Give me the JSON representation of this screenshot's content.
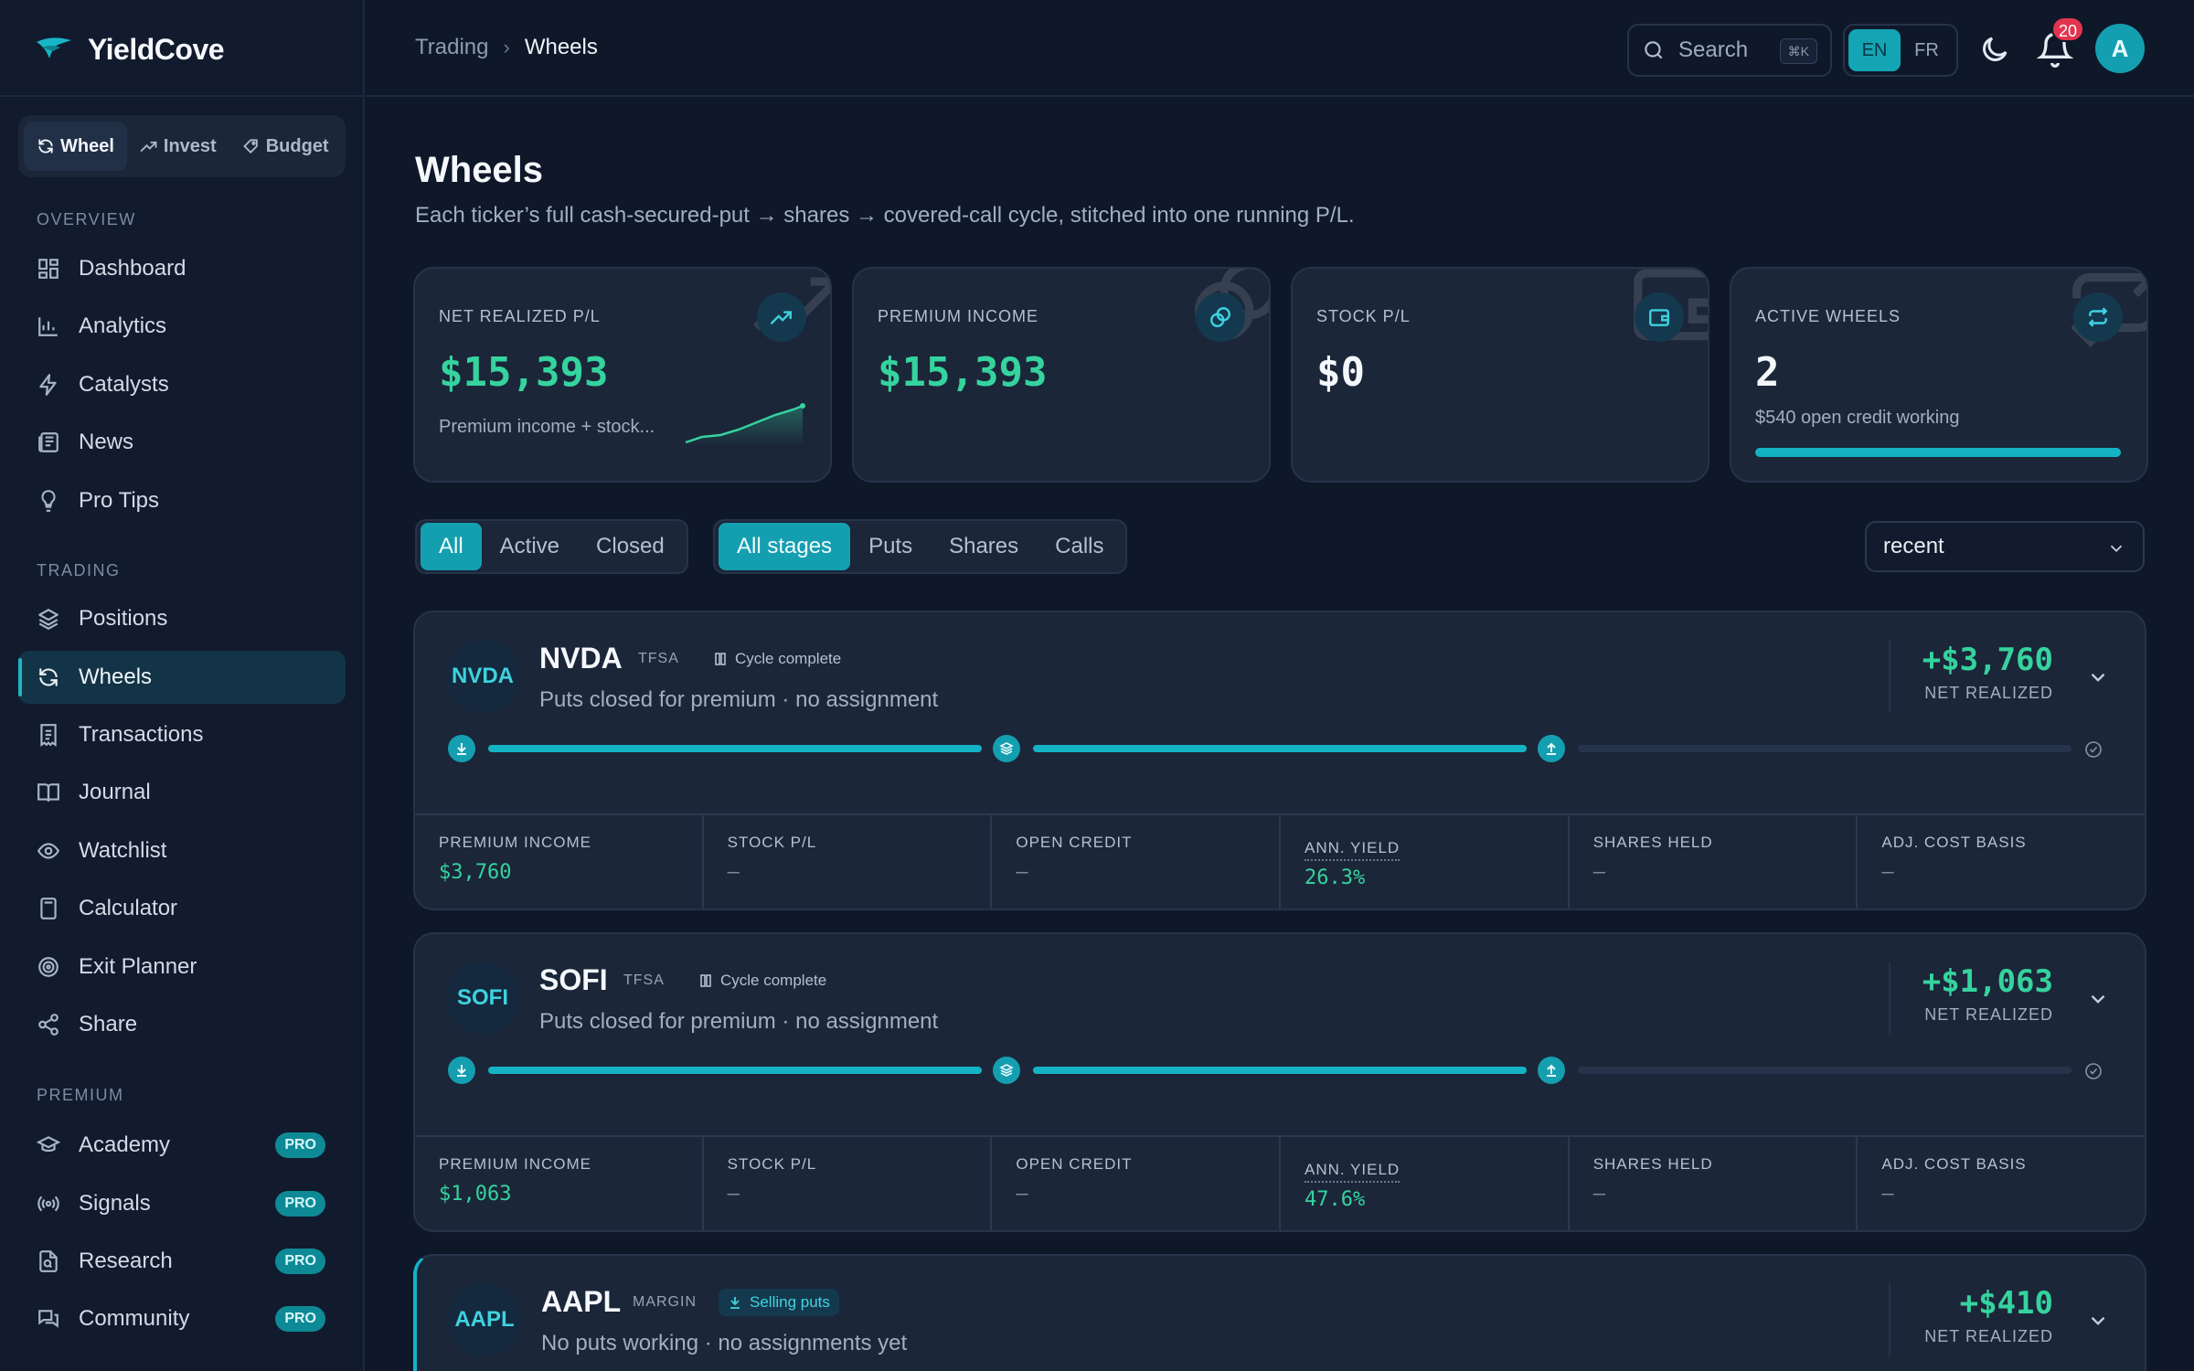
{
  "app": {
    "name": "YieldCove"
  },
  "mode_switch": [
    {
      "label": "Wheel",
      "icon": "refresh-icon",
      "active": true
    },
    {
      "label": "Invest",
      "icon": "trend-up-icon",
      "active": false
    },
    {
      "label": "Budget",
      "icon": "tag-icon",
      "active": false
    }
  ],
  "sidebar": {
    "overview_label": "OVERVIEW",
    "trading_label": "TRADING",
    "premium_label": "PREMIUM",
    "pro_label": "PRO",
    "overview": [
      {
        "label": "Dashboard",
        "icon": "grid-icon"
      },
      {
        "label": "Analytics",
        "icon": "bar-chart-icon"
      },
      {
        "label": "Catalysts",
        "icon": "bolt-icon"
      },
      {
        "label": "News",
        "icon": "newspaper-icon"
      },
      {
        "label": "Pro Tips",
        "icon": "lightbulb-icon"
      }
    ],
    "trading": [
      {
        "label": "Positions",
        "icon": "layers-icon"
      },
      {
        "label": "Wheels",
        "icon": "refresh-icon",
        "active": true
      },
      {
        "label": "Transactions",
        "icon": "receipt-icon"
      },
      {
        "label": "Journal",
        "icon": "book-icon"
      },
      {
        "label": "Watchlist",
        "icon": "eye-icon"
      },
      {
        "label": "Calculator",
        "icon": "calculator-icon"
      },
      {
        "label": "Exit Planner",
        "icon": "target-icon"
      },
      {
        "label": "Share",
        "icon": "share-icon"
      }
    ],
    "premium": [
      {
        "label": "Academy",
        "icon": "graduation-cap-icon"
      },
      {
        "label": "Signals",
        "icon": "broadcast-icon"
      },
      {
        "label": "Research",
        "icon": "file-search-icon"
      },
      {
        "label": "Community",
        "icon": "chat-icon"
      }
    ]
  },
  "header": {
    "breadcrumb": [
      "Trading",
      "Wheels"
    ],
    "search_label": "Search",
    "search_shortcut": "⌘K",
    "languages": [
      "EN",
      "FR"
    ],
    "active_language": "EN",
    "notification_count": "20",
    "avatar_initial": "A"
  },
  "page": {
    "title": "Wheels",
    "subtitle": "Each ticker’s full cash-secured-put → shares → covered-call cycle, stitched into one running P/L."
  },
  "summary_cards": [
    {
      "label": "NET REALIZED P/L",
      "value": "$15,393",
      "sub": "Premium income + stock...",
      "icon": "trend-up-icon",
      "tone": "green"
    },
    {
      "label": "PREMIUM INCOME",
      "value": "$15,393",
      "sub": "",
      "icon": "coins-icon",
      "tone": "green"
    },
    {
      "label": "STOCK P/L",
      "value": "$0",
      "sub": "",
      "icon": "wallet-icon",
      "tone": "white"
    },
    {
      "label": "ACTIVE WHEELS",
      "value": "2",
      "sub": "$540 open credit working",
      "icon": "repeat-icon",
      "tone": "white",
      "progress": 1.0
    }
  ],
  "filters": {
    "status": [
      "All",
      "Active",
      "Closed"
    ],
    "status_active": "All",
    "stages": [
      "All stages",
      "Puts",
      "Shares",
      "Calls"
    ],
    "stages_active": "All stages",
    "sort": "recent"
  },
  "wheels": [
    {
      "ticker": "NVDA",
      "account": "TFSA",
      "tag": "Cycle complete",
      "tag_icon": "columns-icon",
      "description": "Puts closed for premium · no assignment",
      "pl": "+$3,760",
      "pl_label": "NET REALIZED",
      "stages_done": 2,
      "stats": [
        {
          "label": "PREMIUM INCOME",
          "value": "$3,760",
          "tone": "g"
        },
        {
          "label": "STOCK P/L",
          "value": "—",
          "tone": ""
        },
        {
          "label": "OPEN CREDIT",
          "value": "—",
          "tone": ""
        },
        {
          "label": "ANN. YIELD",
          "value": "26.3%",
          "tone": "g"
        },
        {
          "label": "SHARES HELD",
          "value": "—",
          "tone": ""
        },
        {
          "label": "ADJ. COST BASIS",
          "value": "—",
          "tone": ""
        }
      ]
    },
    {
      "ticker": "SOFI",
      "account": "TFSA",
      "tag": "Cycle complete",
      "tag_icon": "columns-icon",
      "description": "Puts closed for premium · no assignment",
      "pl": "+$1,063",
      "pl_label": "NET REALIZED",
      "stages_done": 2,
      "stats": [
        {
          "label": "PREMIUM INCOME",
          "value": "$1,063",
          "tone": "g"
        },
        {
          "label": "STOCK P/L",
          "value": "—",
          "tone": ""
        },
        {
          "label": "OPEN CREDIT",
          "value": "—",
          "tone": ""
        },
        {
          "label": "ANN. YIELD",
          "value": "47.6%",
          "tone": "g"
        },
        {
          "label": "SHARES HELD",
          "value": "—",
          "tone": ""
        },
        {
          "label": "ADJ. COST BASIS",
          "value": "—",
          "tone": ""
        }
      ]
    },
    {
      "ticker": "AAPL",
      "account": "MARGIN",
      "tag": "Selling puts",
      "tag_icon": "download-icon",
      "description": "No puts working · no assignments yet",
      "pl": "+$410",
      "pl_label": "NET REALIZED"
    }
  ],
  "colors": {
    "accent": "#14b3c4",
    "positive": "#35d39e",
    "bg": "#0f1829",
    "card": "#1b2639",
    "badge": "#e2344f"
  }
}
